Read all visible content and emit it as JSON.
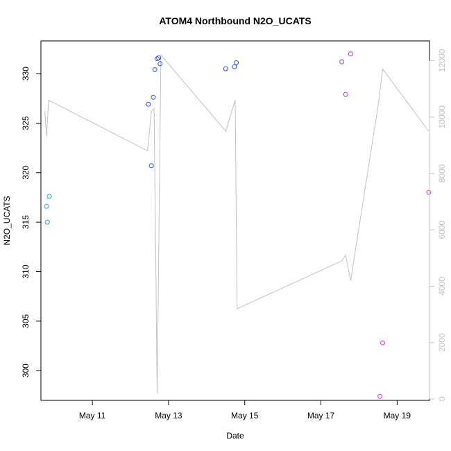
{
  "chart_data": {
    "type": "scatter",
    "title": "ATOM4 Northbound N2O_UCATS",
    "xlabel": "Date",
    "ylabel": "N2O_UCATS",
    "xlim": [
      9.65,
      19.85
    ],
    "ylim": [
      297.0,
      333.3
    ],
    "y2lim": [
      -50,
      12700
    ],
    "x_ticks": [
      {
        "value": 11,
        "label": "May 11"
      },
      {
        "value": 13,
        "label": "May 13"
      },
      {
        "value": 15,
        "label": "May 15"
      },
      {
        "value": 17,
        "label": "May 17"
      },
      {
        "value": 19,
        "label": "May 19"
      }
    ],
    "y_ticks": [
      300,
      305,
      310,
      315,
      320,
      325,
      330
    ],
    "y2_ticks": [
      0,
      2000,
      4000,
      6000,
      8000,
      10000,
      12000
    ],
    "points": [
      {
        "x": 9.8,
        "y": 316.6,
        "color": "#20a8d8"
      },
      {
        "x": 9.82,
        "y": 315.0,
        "color": "#20a8d8"
      },
      {
        "x": 9.87,
        "y": 317.6,
        "color": "#20a8d8"
      },
      {
        "x": 12.47,
        "y": 326.9,
        "color": "#2a50e0"
      },
      {
        "x": 12.55,
        "y": 320.7,
        "color": "#2a50e0"
      },
      {
        "x": 12.6,
        "y": 327.6,
        "color": "#2a50e0"
      },
      {
        "x": 12.64,
        "y": 330.4,
        "color": "#2a50e0"
      },
      {
        "x": 12.7,
        "y": 331.5,
        "color": "#2a50e0"
      },
      {
        "x": 12.74,
        "y": 331.6,
        "color": "#2a50e0"
      },
      {
        "x": 12.78,
        "y": 331.0,
        "color": "#2a50e0"
      },
      {
        "x": 14.5,
        "y": 330.5,
        "color": "#2a50e0"
      },
      {
        "x": 14.73,
        "y": 330.7,
        "color": "#2a50e0"
      },
      {
        "x": 14.78,
        "y": 331.1,
        "color": "#2a50e0"
      },
      {
        "x": 17.55,
        "y": 331.2,
        "color": "#a040e0"
      },
      {
        "x": 17.65,
        "y": 327.9,
        "color": "#a040e0"
      },
      {
        "x": 17.78,
        "y": 332.0,
        "color": "#a040e0"
      },
      {
        "x": 18.55,
        "y": 297.4,
        "color": "#c838e0"
      },
      {
        "x": 18.62,
        "y": 302.8,
        "color": "#c838e0"
      },
      {
        "x": 19.83,
        "y": 318.0,
        "color": "#e030d8"
      }
    ],
    "altitude_line": {
      "color": "#c0c0c0",
      "x": [
        9.75,
        9.8,
        9.85,
        12.45,
        12.55,
        12.62,
        12.7,
        12.8,
        14.5,
        14.75,
        14.8,
        17.55,
        17.65,
        17.78,
        18.5,
        18.62,
        19.83
      ],
      "y": [
        10200,
        9300,
        10600,
        8800,
        10200,
        10300,
        200,
        12200,
        9500,
        10600,
        3200,
        4900,
        5100,
        4200,
        10400,
        11700,
        9500
      ]
    },
    "grid": false,
    "legend": "none"
  }
}
